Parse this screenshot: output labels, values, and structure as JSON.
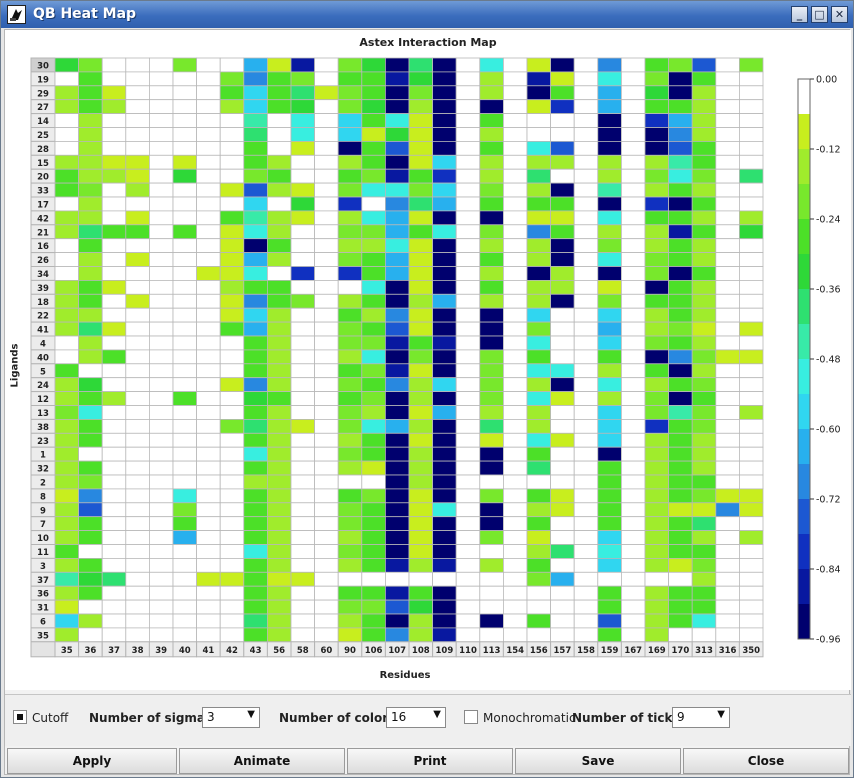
{
  "window": {
    "title": "QB Heat Map"
  },
  "chart_data": {
    "type": "heatmap",
    "title": "Astex Interaction Map",
    "xlabel": "Residues",
    "ylabel": "Ligands",
    "x_labels": [
      "35",
      "36",
      "37",
      "38",
      "39",
      "40",
      "41",
      "42",
      "43",
      "56",
      "58",
      "60",
      "90",
      "106",
      "107",
      "108",
      "109",
      "110",
      "113",
      "154",
      "156",
      "157",
      "158",
      "159",
      "167",
      "169",
      "170",
      "313",
      "316",
      "350"
    ],
    "y_labels": [
      "30",
      "19",
      "29",
      "27",
      "14",
      "25",
      "28",
      "15",
      "20",
      "33",
      "17",
      "42",
      "21",
      "16",
      "26",
      "34",
      "39",
      "18",
      "22",
      "41",
      "4",
      "40",
      "5",
      "24",
      "12",
      "13",
      "38",
      "23",
      "1",
      "32",
      "2",
      "8",
      "9",
      "7",
      "10",
      "11",
      "3",
      "37",
      "36",
      "31",
      "6",
      "35"
    ],
    "colorbar_ticks": [
      "0.00",
      "-0.12",
      "-0.24",
      "-0.36",
      "-0.48",
      "-0.60",
      "-0.72",
      "-0.84",
      "-0.96"
    ],
    "colorbar_range": [
      -0.96,
      0.0
    ],
    "num_colors": 16,
    "palette": [
      "#ffffff",
      "#c8ee1e",
      "#a0ec2c",
      "#78e82c",
      "#4ce028",
      "#2ed838",
      "#2ee070",
      "#38eaa8",
      "#38eee0",
      "#30d6f0",
      "#28b0ee",
      "#2888e0",
      "#1c58d2",
      "#1030c0",
      "#0818a0",
      "#00006e"
    ],
    "values": [
      [
        5,
        3,
        0,
        0,
        0,
        3,
        0,
        0,
        10,
        1,
        14,
        0,
        3,
        5,
        15,
        6,
        15,
        0,
        8,
        0,
        1,
        15,
        0,
        11,
        0,
        4,
        3,
        12,
        0,
        3
      ],
      [
        0,
        4,
        0,
        0,
        0,
        0,
        0,
        3,
        11,
        4,
        3,
        0,
        4,
        4,
        14,
        5,
        15,
        0,
        2,
        0,
        14,
        1,
        0,
        8,
        0,
        3,
        15,
        4,
        0,
        0
      ],
      [
        2,
        4,
        1,
        0,
        0,
        0,
        0,
        4,
        9,
        4,
        6,
        1,
        3,
        4,
        15,
        3,
        15,
        0,
        2,
        0,
        15,
        4,
        0,
        10,
        0,
        5,
        15,
        2,
        0,
        0
      ],
      [
        2,
        4,
        2,
        0,
        0,
        0,
        0,
        2,
        9,
        4,
        5,
        0,
        3,
        5,
        15,
        2,
        15,
        0,
        15,
        0,
        1,
        13,
        0,
        10,
        0,
        4,
        4,
        2,
        0,
        0
      ],
      [
        0,
        2,
        0,
        0,
        0,
        0,
        0,
        0,
        7,
        0,
        8,
        0,
        9,
        4,
        8,
        1,
        15,
        0,
        4,
        0,
        0,
        0,
        0,
        15,
        0,
        13,
        10,
        2,
        0,
        0
      ],
      [
        0,
        2,
        0,
        0,
        0,
        0,
        0,
        0,
        6,
        0,
        8,
        0,
        9,
        1,
        5,
        1,
        15,
        0,
        2,
        0,
        0,
        0,
        0,
        15,
        0,
        15,
        11,
        2,
        0,
        0
      ],
      [
        0,
        2,
        0,
        0,
        0,
        0,
        0,
        0,
        4,
        0,
        1,
        0,
        15,
        4,
        12,
        1,
        15,
        0,
        4,
        0,
        8,
        12,
        0,
        15,
        0,
        15,
        12,
        4,
        0,
        0
      ],
      [
        2,
        2,
        1,
        1,
        0,
        1,
        0,
        0,
        4,
        2,
        0,
        0,
        2,
        4,
        15,
        1,
        9,
        0,
        2,
        0,
        2,
        2,
        0,
        2,
        0,
        2,
        7,
        4,
        0,
        0
      ],
      [
        4,
        2,
        2,
        1,
        0,
        5,
        0,
        0,
        3,
        4,
        0,
        0,
        4,
        3,
        14,
        4,
        13,
        0,
        2,
        0,
        6,
        0,
        0,
        2,
        0,
        3,
        8,
        3,
        0,
        6
      ],
      [
        4,
        3,
        0,
        2,
        0,
        0,
        0,
        1,
        12,
        2,
        1,
        0,
        3,
        8,
        8,
        3,
        9,
        0,
        3,
        0,
        2,
        15,
        0,
        7,
        0,
        2,
        4,
        2,
        0,
        0
      ],
      [
        0,
        2,
        0,
        0,
        0,
        0,
        0,
        0,
        9,
        0,
        5,
        0,
        13,
        0,
        11,
        6,
        10,
        0,
        4,
        0,
        4,
        4,
        0,
        15,
        0,
        13,
        15,
        4,
        0,
        0
      ],
      [
        2,
        2,
        0,
        1,
        0,
        0,
        0,
        4,
        7,
        2,
        1,
        0,
        2,
        8,
        10,
        1,
        15,
        0,
        15,
        0,
        1,
        1,
        0,
        8,
        0,
        4,
        4,
        2,
        0,
        2
      ],
      [
        2,
        6,
        4,
        4,
        0,
        4,
        0,
        1,
        8,
        2,
        0,
        0,
        3,
        3,
        10,
        4,
        8,
        0,
        3,
        0,
        11,
        4,
        0,
        2,
        0,
        2,
        14,
        4,
        0,
        5
      ],
      [
        0,
        4,
        0,
        0,
        0,
        0,
        0,
        1,
        15,
        4,
        0,
        0,
        2,
        2,
        8,
        1,
        15,
        0,
        2,
        0,
        2,
        15,
        0,
        3,
        0,
        2,
        4,
        2,
        0,
        0
      ],
      [
        0,
        2,
        0,
        1,
        0,
        0,
        0,
        1,
        10,
        2,
        0,
        0,
        3,
        4,
        10,
        1,
        15,
        0,
        4,
        0,
        2,
        15,
        0,
        8,
        0,
        3,
        4,
        2,
        0,
        0
      ],
      [
        0,
        2,
        0,
        0,
        0,
        0,
        1,
        1,
        8,
        0,
        13,
        0,
        13,
        4,
        10,
        1,
        15,
        0,
        2,
        0,
        15,
        2,
        0,
        15,
        0,
        3,
        15,
        4,
        0,
        0
      ],
      [
        2,
        4,
        1,
        0,
        0,
        0,
        0,
        2,
        4,
        4,
        0,
        0,
        0,
        8,
        15,
        1,
        15,
        0,
        4,
        0,
        2,
        2,
        0,
        1,
        0,
        15,
        4,
        2,
        0,
        0
      ],
      [
        2,
        4,
        0,
        1,
        0,
        0,
        0,
        1,
        11,
        4,
        3,
        0,
        2,
        4,
        15,
        2,
        10,
        0,
        2,
        0,
        2,
        15,
        0,
        3,
        0,
        4,
        4,
        2,
        0,
        0
      ],
      [
        2,
        2,
        0,
        0,
        0,
        0,
        0,
        1,
        9,
        2,
        0,
        0,
        4,
        2,
        11,
        1,
        15,
        0,
        15,
        0,
        9,
        0,
        0,
        9,
        0,
        2,
        4,
        2,
        0,
        0
      ],
      [
        2,
        6,
        1,
        0,
        0,
        0,
        0,
        4,
        10,
        2,
        0,
        0,
        3,
        4,
        12,
        1,
        15,
        0,
        15,
        0,
        3,
        0,
        0,
        10,
        0,
        2,
        3,
        1,
        0,
        1
      ],
      [
        0,
        2,
        0,
        0,
        0,
        0,
        0,
        0,
        4,
        2,
        0,
        0,
        3,
        3,
        14,
        4,
        14,
        0,
        15,
        0,
        8,
        0,
        0,
        9,
        0,
        3,
        4,
        2,
        0,
        0
      ],
      [
        0,
        2,
        4,
        0,
        0,
        0,
        0,
        0,
        4,
        2,
        0,
        0,
        2,
        8,
        15,
        3,
        15,
        0,
        3,
        0,
        4,
        0,
        0,
        4,
        0,
        15,
        11,
        3,
        1,
        1
      ],
      [
        4,
        0,
        0,
        0,
        0,
        0,
        0,
        0,
        4,
        2,
        0,
        0,
        4,
        3,
        14,
        1,
        15,
        0,
        3,
        0,
        8,
        8,
        0,
        2,
        0,
        4,
        15,
        2,
        0,
        0
      ],
      [
        2,
        5,
        0,
        0,
        0,
        0,
        0,
        1,
        11,
        2,
        0,
        0,
        3,
        4,
        11,
        2,
        9,
        0,
        3,
        0,
        2,
        15,
        0,
        8,
        0,
        2,
        4,
        3,
        0,
        0
      ],
      [
        2,
        4,
        2,
        0,
        0,
        4,
        0,
        0,
        5,
        4,
        0,
        0,
        4,
        3,
        15,
        2,
        15,
        0,
        3,
        0,
        8,
        1,
        0,
        2,
        0,
        3,
        15,
        4,
        0,
        0
      ],
      [
        3,
        8,
        0,
        0,
        0,
        0,
        0,
        0,
        4,
        2,
        0,
        0,
        3,
        2,
        15,
        1,
        10,
        0,
        2,
        0,
        2,
        0,
        0,
        9,
        0,
        3,
        7,
        3,
        0,
        2
      ],
      [
        2,
        4,
        0,
        0,
        0,
        0,
        0,
        3,
        6,
        2,
        1,
        0,
        3,
        8,
        10,
        2,
        15,
        0,
        6,
        0,
        2,
        0,
        0,
        9,
        0,
        13,
        4,
        3,
        0,
        0
      ],
      [
        2,
        4,
        0,
        0,
        0,
        0,
        0,
        0,
        4,
        2,
        0,
        0,
        2,
        4,
        15,
        1,
        15,
        0,
        1,
        0,
        8,
        1,
        0,
        9,
        0,
        2,
        4,
        2,
        0,
        0
      ],
      [
        2,
        0,
        0,
        0,
        0,
        0,
        0,
        0,
        8,
        2,
        0,
        0,
        3,
        4,
        15,
        2,
        15,
        0,
        15,
        0,
        4,
        0,
        0,
        15,
        0,
        2,
        4,
        2,
        0,
        0
      ],
      [
        2,
        4,
        0,
        0,
        0,
        0,
        0,
        0,
        4,
        2,
        0,
        0,
        2,
        1,
        15,
        2,
        15,
        0,
        15,
        0,
        6,
        0,
        0,
        4,
        0,
        2,
        4,
        2,
        0,
        0
      ],
      [
        2,
        3,
        0,
        0,
        0,
        0,
        0,
        0,
        2,
        2,
        0,
        0,
        0,
        0,
        15,
        2,
        15,
        0,
        0,
        0,
        0,
        0,
        0,
        4,
        0,
        2,
        4,
        4,
        0,
        0
      ],
      [
        1,
        11,
        0,
        0,
        0,
        8,
        0,
        0,
        4,
        2,
        0,
        0,
        4,
        3,
        15,
        1,
        15,
        0,
        3,
        0,
        4,
        1,
        0,
        4,
        0,
        2,
        4,
        3,
        1,
        1
      ],
      [
        2,
        12,
        0,
        0,
        0,
        3,
        0,
        0,
        4,
        2,
        0,
        0,
        3,
        4,
        15,
        1,
        8,
        0,
        15,
        0,
        2,
        1,
        0,
        4,
        0,
        2,
        1,
        1,
        11,
        1
      ],
      [
        2,
        4,
        0,
        0,
        0,
        4,
        0,
        0,
        4,
        2,
        0,
        0,
        3,
        4,
        15,
        1,
        15,
        0,
        15,
        0,
        4,
        0,
        0,
        4,
        0,
        2,
        4,
        6,
        0,
        0
      ],
      [
        2,
        4,
        0,
        0,
        0,
        10,
        0,
        0,
        4,
        2,
        0,
        0,
        2,
        4,
        15,
        1,
        15,
        0,
        3,
        0,
        1,
        0,
        0,
        9,
        0,
        2,
        4,
        2,
        0,
        2
      ],
      [
        4,
        0,
        0,
        0,
        0,
        0,
        0,
        0,
        8,
        2,
        0,
        0,
        3,
        4,
        15,
        1,
        15,
        0,
        0,
        0,
        2,
        6,
        0,
        8,
        0,
        2,
        4,
        4,
        0,
        0
      ],
      [
        2,
        4,
        0,
        0,
        0,
        0,
        0,
        0,
        4,
        2,
        0,
        0,
        2,
        4,
        14,
        2,
        14,
        0,
        2,
        0,
        4,
        0,
        0,
        9,
        0,
        2,
        1,
        3,
        0,
        0
      ],
      [
        7,
        5,
        6,
        0,
        0,
        0,
        1,
        1,
        4,
        1,
        1,
        0,
        0,
        0,
        0,
        0,
        0,
        0,
        0,
        0,
        3,
        10,
        0,
        0,
        0,
        0,
        0,
        2,
        0,
        0
      ],
      [
        2,
        4,
        0,
        0,
        0,
        0,
        0,
        0,
        4,
        2,
        0,
        0,
        4,
        4,
        14,
        4,
        15,
        0,
        0,
        0,
        0,
        0,
        0,
        4,
        0,
        2,
        4,
        4,
        0,
        0
      ],
      [
        1,
        0,
        0,
        0,
        0,
        0,
        0,
        0,
        4,
        2,
        0,
        0,
        3,
        3,
        12,
        5,
        15,
        0,
        0,
        0,
        0,
        0,
        0,
        4,
        0,
        2,
        4,
        4,
        0,
        0
      ],
      [
        9,
        2,
        0,
        0,
        0,
        0,
        0,
        0,
        6,
        2,
        0,
        0,
        2,
        4,
        15,
        2,
        15,
        0,
        15,
        0,
        4,
        0,
        0,
        12,
        0,
        2,
        4,
        8,
        0,
        0
      ],
      [
        2,
        0,
        0,
        0,
        0,
        0,
        0,
        0,
        4,
        2,
        0,
        0,
        1,
        4,
        11,
        2,
        14,
        0,
        0,
        0,
        0,
        0,
        0,
        4,
        0,
        2,
        0,
        0,
        0,
        0
      ]
    ]
  },
  "controls": {
    "cutoff_label": "Cutoff",
    "cutoff_checked": true,
    "sigmas_label": "Number of sigmas:",
    "sigmas_value": "3",
    "colors_label": "Number of colors:",
    "colors_value": "16",
    "mono_label": "Monochromatic",
    "mono_checked": false,
    "ticks_label": "Number of ticks:",
    "ticks_value": "9"
  },
  "buttons": {
    "apply": "Apply",
    "animate": "Animate",
    "print": "Print",
    "save": "Save",
    "close": "Close"
  },
  "icons": {
    "minimize": "minimize-icon",
    "maximize": "maximize-icon",
    "close": "close-icon",
    "app": "app-icon",
    "dropdown": "chevron-down-icon"
  }
}
